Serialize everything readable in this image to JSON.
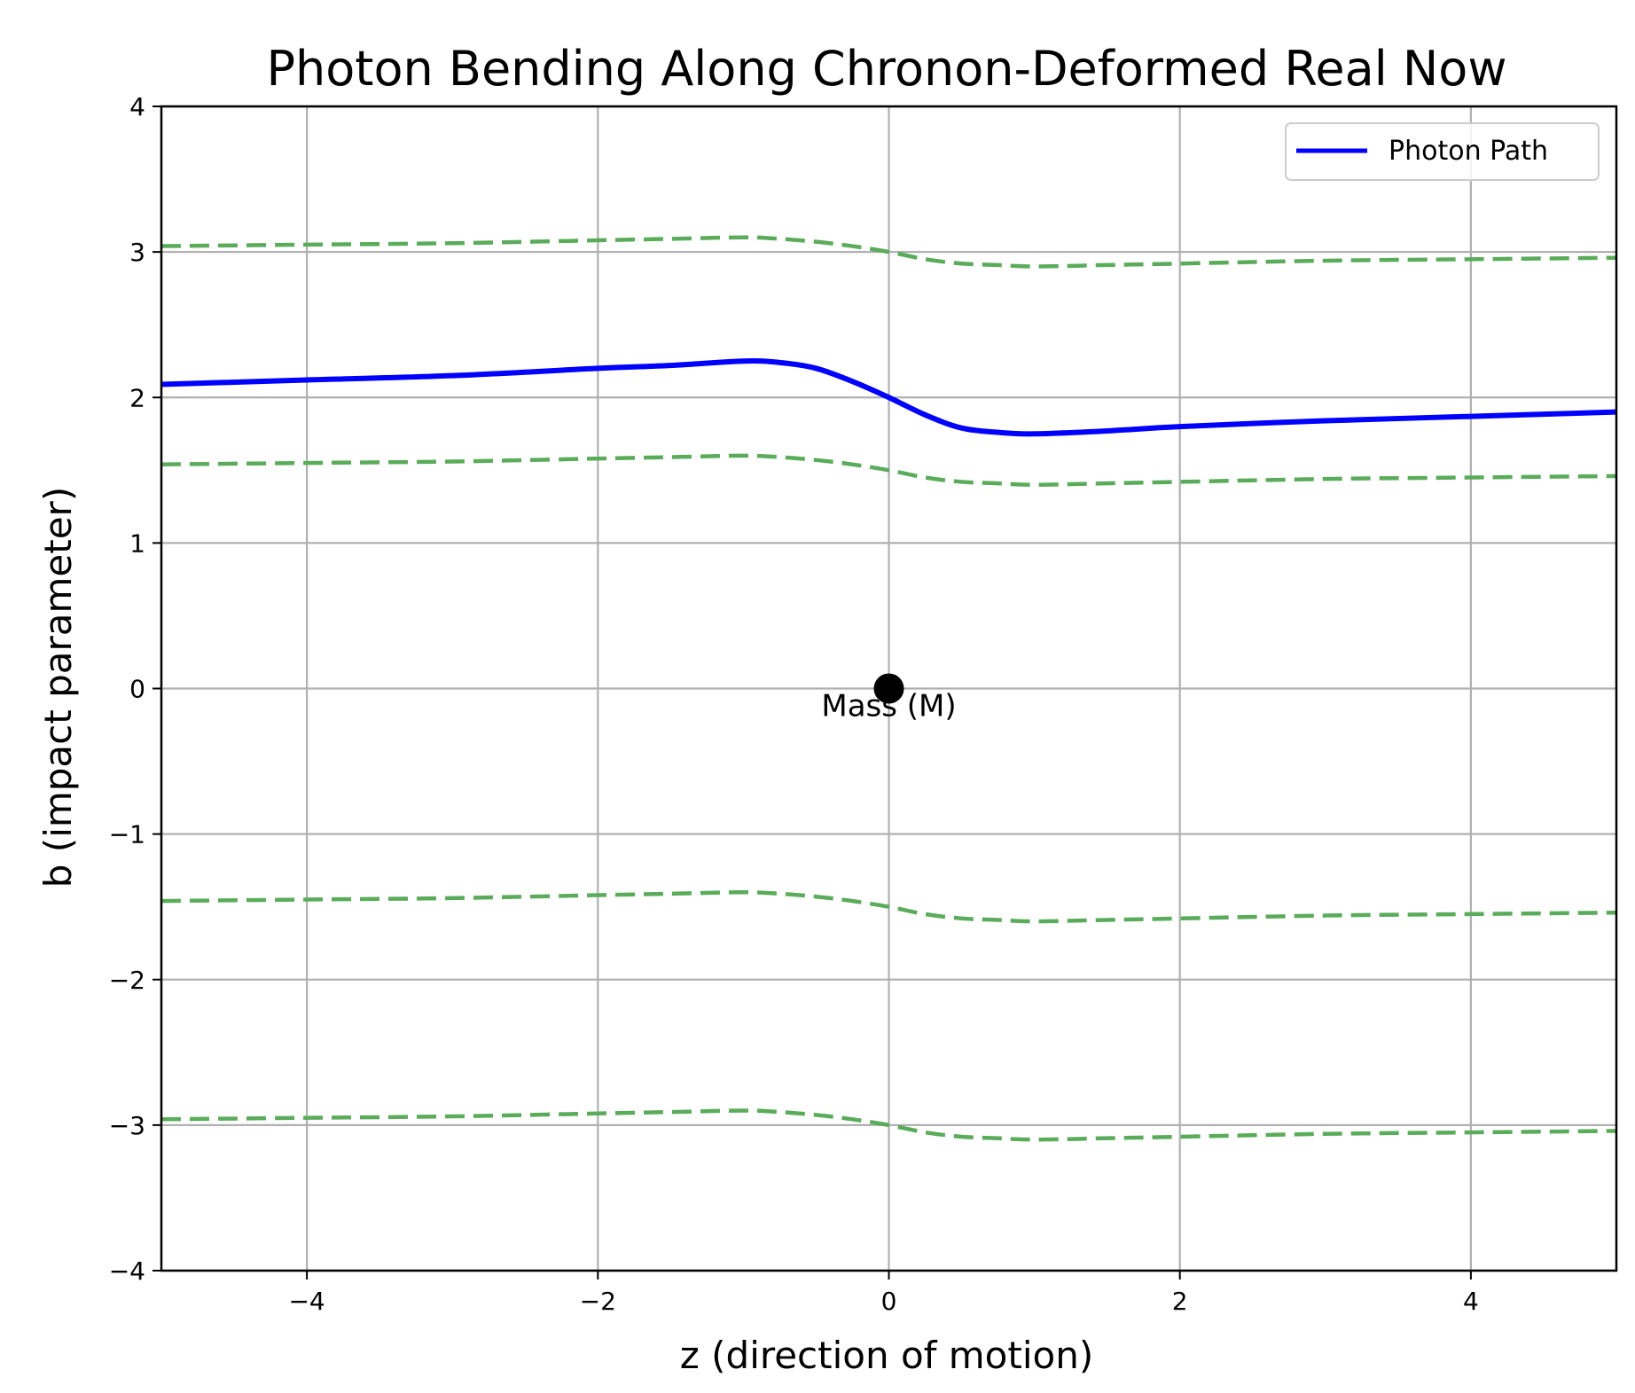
{
  "chart_data": {
    "type": "line",
    "title": "Photon Bending Along Chronon-Deformed Real Now",
    "xlabel": "z (direction of motion)",
    "ylabel": "b (impact parameter)",
    "xlim": [
      -5,
      5
    ],
    "ylim": [
      -4,
      4
    ],
    "xticks": [
      -4,
      -2,
      0,
      2,
      4
    ],
    "yticks": [
      -4,
      -3,
      -2,
      -1,
      0,
      1,
      2,
      3,
      4
    ],
    "grid": true,
    "legend": {
      "position": "top-right",
      "entries": [
        "Photon Path"
      ]
    },
    "colors": {
      "photon": "#0000ff",
      "contours": "#5aab5a",
      "grid": "#b0b0b0",
      "mass": "#000000"
    },
    "series": [
      {
        "name": "Photon Path",
        "style": "solid",
        "color": "#0000ff",
        "x": [
          -5,
          -4,
          -3,
          -2,
          -1.5,
          -1,
          -0.75,
          -0.5,
          -0.25,
          0,
          0.25,
          0.5,
          0.75,
          1,
          1.5,
          2,
          3,
          4,
          5
        ],
        "y": [
          2.09,
          2.12,
          2.15,
          2.2,
          2.22,
          2.25,
          2.24,
          2.2,
          2.11,
          2.0,
          1.88,
          1.79,
          1.76,
          1.75,
          1.77,
          1.8,
          1.84,
          1.87,
          1.9
        ]
      },
      {
        "name": "deformed-now-contour-upper",
        "style": "dashed",
        "color": "#5aab5a",
        "x": [
          -5,
          -4,
          -3,
          -2,
          -1.5,
          -1,
          -0.75,
          -0.5,
          -0.25,
          0,
          0.25,
          0.5,
          0.75,
          1,
          1.5,
          2,
          3,
          4,
          5
        ],
        "y": [
          3.04,
          3.05,
          3.06,
          3.08,
          3.09,
          3.1,
          3.09,
          3.07,
          3.04,
          3.0,
          2.95,
          2.92,
          2.91,
          2.9,
          2.91,
          2.92,
          2.94,
          2.95,
          2.96
        ]
      },
      {
        "name": "deformed-now-contour-mid-upper",
        "style": "dashed",
        "color": "#5aab5a",
        "x": [
          -5,
          -4,
          -3,
          -2,
          -1.5,
          -1,
          -0.75,
          -0.5,
          -0.25,
          0,
          0.25,
          0.5,
          0.75,
          1,
          1.5,
          2,
          3,
          4,
          5
        ],
        "y": [
          1.54,
          1.55,
          1.56,
          1.58,
          1.59,
          1.6,
          1.59,
          1.57,
          1.54,
          1.5,
          1.45,
          1.42,
          1.41,
          1.4,
          1.41,
          1.42,
          1.44,
          1.45,
          1.46
        ]
      },
      {
        "name": "deformed-now-contour-mid-lower",
        "style": "dashed",
        "color": "#5aab5a",
        "x": [
          -5,
          -4,
          -3,
          -2,
          -1.5,
          -1,
          -0.75,
          -0.5,
          -0.25,
          0,
          0.25,
          0.5,
          0.75,
          1,
          1.5,
          2,
          3,
          4,
          5
        ],
        "y": [
          -1.46,
          -1.45,
          -1.44,
          -1.42,
          -1.41,
          -1.4,
          -1.41,
          -1.43,
          -1.46,
          -1.5,
          -1.55,
          -1.58,
          -1.59,
          -1.6,
          -1.59,
          -1.58,
          -1.56,
          -1.55,
          -1.54
        ]
      },
      {
        "name": "deformed-now-contour-lower",
        "style": "dashed",
        "color": "#5aab5a",
        "x": [
          -5,
          -4,
          -3,
          -2,
          -1.5,
          -1,
          -0.75,
          -0.5,
          -0.25,
          0,
          0.25,
          0.5,
          0.75,
          1,
          1.5,
          2,
          3,
          4,
          5
        ],
        "y": [
          -2.96,
          -2.95,
          -2.94,
          -2.92,
          -2.91,
          -2.9,
          -2.91,
          -2.93,
          -2.96,
          -3.0,
          -3.05,
          -3.08,
          -3.09,
          -3.1,
          -3.09,
          -3.08,
          -3.06,
          -3.05,
          -3.04
        ]
      }
    ],
    "points": [
      {
        "name": "Mass",
        "x": 0,
        "y": 0,
        "label": "Mass (M)"
      }
    ]
  }
}
